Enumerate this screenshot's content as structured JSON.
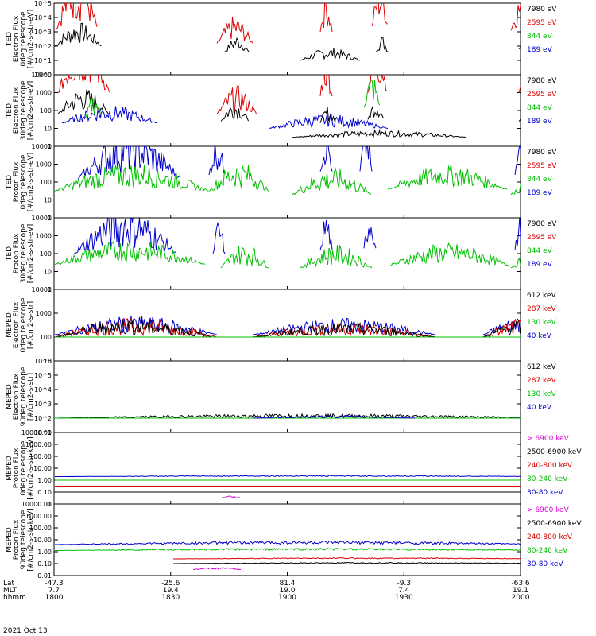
{
  "chart_data": {
    "type": "line",
    "date": "2021 Oct 13",
    "x_ticks": [
      "1800",
      "1830",
      "1900",
      "1930",
      "2000"
    ],
    "footer": {
      "row_labels": [
        "Lat",
        "MLT",
        "hhmm"
      ],
      "lat": [
        "-47.3",
        "-25.6",
        "81.4",
        "-9.3",
        "-63.6"
      ],
      "mlt": [
        "7.7",
        "19.4",
        "19.0",
        "7.4",
        "19.1"
      ],
      "hhmm": [
        "1800",
        "1830",
        "1900",
        "1930",
        "2000"
      ]
    },
    "panels": [
      {
        "ylabel": [
          "TED",
          "Electron Flux",
          "0deg telescope",
          "[#/cm2-s-str-eV]"
        ],
        "log_range": [
          0,
          5
        ],
        "tick_labels": [
          "10^0",
          "10^1",
          "10^2",
          "10^3",
          "10^4",
          "10^5"
        ],
        "legend": [
          "7980 eV",
          "2595 eV",
          "844 eV",
          "189 eV"
        ],
        "legend_colors": [
          "#000000",
          "#dd0000",
          "#00c000",
          "#0000cc"
        ],
        "series": [
          {
            "color": "#000000",
            "bursts": [
              [
                1,
                60,
                2.0,
                1.7
              ],
              [
                215,
                245,
                1.6,
                1.2
              ],
              [
                310,
                385,
                1.0,
                0.9
              ],
              [
                405,
                420,
                1.6,
                1.2
              ],
              [
                585,
                600,
                1.8,
                1.3
              ]
            ]
          },
          {
            "color": "#dd0000",
            "bursts": [
              [
                3,
                55,
                3.2,
                4.6
              ],
              [
                205,
                250,
                2.2,
                1.9
              ],
              [
                335,
                350,
                3.0,
                2.9
              ],
              [
                400,
                420,
                3.4,
                3.2
              ],
              [
                575,
                610,
                3.1,
                3.2
              ],
              [
                632,
                645,
                3.0,
                3.3
              ]
            ]
          },
          {
            "color": "#00c000",
            "bursts": [
              [
                630,
                645,
                1.5,
                1.4
              ]
            ]
          }
        ]
      },
      {
        "ylabel": [
          "TED",
          "Electron Flux",
          "30deg telescope",
          "[#/cm2-s-str-eV]"
        ],
        "log_range": [
          0,
          4
        ],
        "tick_labels": [
          "1",
          "10",
          "100",
          "1000",
          "10000"
        ],
        "legend": [
          "7980 eV",
          "2595 eV",
          "844 eV",
          "189 eV"
        ],
        "legend_colors": [
          "#000000",
          "#dd0000",
          "#00c000",
          "#0000cc"
        ],
        "series": [
          {
            "color": "#000000",
            "bursts": [
              [
                5,
                70,
                1.8,
                1.5
              ],
              [
                210,
                245,
                1.4,
                1.2
              ],
              [
                335,
                355,
                1.3,
                1.0
              ],
              [
                395,
                415,
                1.5,
                1.2
              ],
              [
                585,
                600,
                1.4,
                1.2
              ],
              [
                300,
                520,
                0.5,
                0.4
              ]
            ]
          },
          {
            "color": "#dd0000",
            "bursts": [
              [
                5,
                70,
                3.0,
                3.7
              ],
              [
                205,
                255,
                1.8,
                1.6
              ],
              [
                335,
                350,
                2.8,
                2.8
              ],
              [
                395,
                420,
                3.0,
                3.0
              ],
              [
                585,
                610,
                3.0,
                3.0
              ],
              [
                630,
                645,
                3.0,
                3.0
              ]
            ]
          },
          {
            "color": "#00c000",
            "bursts": [
              [
                40,
                60,
                1.6,
                1.4
              ],
              [
                390,
                410,
                2.2,
                2.0
              ],
              [
                630,
                645,
                2.2,
                2.0
              ]
            ]
          },
          {
            "color": "#0000cc",
            "bursts": [
              [
                10,
                130,
                1.3,
                1.0
              ],
              [
                270,
                420,
                1.0,
                0.8
              ]
            ]
          }
        ]
      },
      {
        "ylabel": [
          "TED",
          "Proton Flux",
          "0deg telescope",
          "[#/cm2-s-str-eV]"
        ],
        "log_range": [
          0,
          4
        ],
        "tick_labels": [
          "1",
          "10",
          "100",
          "1000",
          "10000"
        ],
        "legend": [
          "7980 eV",
          "2595 eV",
          "844 eV",
          "189 eV"
        ],
        "legend_colors": [
          "#000000",
          "#dd0000",
          "#00c000",
          "#0000cc"
        ],
        "series": [
          {
            "color": "#0000cc",
            "bursts": [
              [
                30,
                160,
                2.2,
                2.8
              ],
              [
                195,
                215,
                2.4,
                2.4
              ],
              [
                335,
                350,
                2.6,
                2.6
              ],
              [
                385,
                400,
                2.6,
                2.8
              ],
              [
                580,
                600,
                2.4,
                2.7
              ],
              [
                630,
                645,
                2.4,
                2.6
              ]
            ]
          },
          {
            "color": "#00c000",
            "bursts": [
              [
                1,
                195,
                1.5,
                1.6
              ],
              [
                195,
                270,
                1.5,
                1.7
              ],
              [
                300,
                400,
                1.3,
                1.5
              ],
              [
                420,
                570,
                1.6,
                1.4
              ],
              [
                575,
                645,
                1.3,
                1.3
              ]
            ]
          }
        ]
      },
      {
        "ylabel": [
          "TED",
          "Proton Flux",
          "30deg telescope",
          "[#/cm2-s-str-eV]"
        ],
        "log_range": [
          0,
          4
        ],
        "tick_labels": [
          "1",
          "10",
          "100",
          "1000",
          "10000"
        ],
        "legend": [
          "7980 eV",
          "2595 eV",
          "844 eV",
          "189 eV"
        ],
        "legend_colors": [
          "#000000",
          "#dd0000",
          "#00c000",
          "#0000cc"
        ],
        "series": [
          {
            "color": "#0000cc",
            "bursts": [
              [
                25,
                155,
                2.0,
                2.7
              ],
              [
                200,
                215,
                2.0,
                2.0
              ],
              [
                335,
                350,
                2.2,
                2.2
              ],
              [
                390,
                405,
                2.3,
                2.5
              ],
              [
                580,
                600,
                2.2,
                2.5
              ],
              [
                630,
                645,
                2.0,
                2.3
              ]
            ]
          },
          {
            "color": "#00c000",
            "bursts": [
              [
                1,
                190,
                1.4,
                1.4
              ],
              [
                210,
                270,
                1.2,
                1.4
              ],
              [
                310,
                400,
                1.2,
                1.3
              ],
              [
                420,
                575,
                1.3,
                1.3
              ],
              [
                575,
                645,
                1.2,
                1.2
              ]
            ]
          }
        ]
      },
      {
        "ylabel": [
          "MEPED",
          "Electron Flux",
          "0deg telescope",
          "[#/cm2-s-str]"
        ],
        "log_range": [
          1,
          4
        ],
        "tick_labels": [
          "10",
          "100",
          "1000",
          "10000"
        ],
        "legend": [
          "612 keV",
          "287 keV",
          "130 keV",
          "40 keV"
        ],
        "legend_colors": [
          "#000000",
          "#dd0000",
          "#00c000",
          "#0000cc"
        ],
        "series": [
          {
            "color": "#0000cc",
            "bursts": [
              [
                1,
                205,
                2.1,
                0.8
              ],
              [
                250,
                480,
                2.1,
                0.7
              ],
              [
                540,
                645,
                2.1,
                0.8
              ]
            ]
          },
          {
            "color": "#dd0000",
            "bursts": [
              [
                1,
                205,
                2.0,
                0.8
              ],
              [
                250,
                480,
                2.0,
                0.6
              ],
              [
                540,
                645,
                2.0,
                0.8
              ]
            ]
          },
          {
            "color": "#000000",
            "bursts": [
              [
                1,
                200,
                2.0,
                0.8
              ],
              [
                250,
                480,
                2.0,
                0.6
              ],
              [
                540,
                645,
                2.0,
                0.8
              ]
            ]
          },
          {
            "color": "#00c000",
            "bursts": [
              [
                1,
                645,
                2.0,
                0.0
              ]
            ]
          }
        ]
      },
      {
        "ylabel": [
          "MEPED",
          "Electron Flux",
          "90deg telescope",
          "[#/cm2-s-str]"
        ],
        "log_range": [
          1,
          6
        ],
        "tick_labels": [
          "10^1",
          "10^2",
          "10^3",
          "10^4",
          "10^5",
          "10^6"
        ],
        "legend": [
          "612 keV",
          "287 keV",
          "130 keV",
          "40 keV"
        ],
        "legend_colors": [
          "#000000",
          "#dd0000",
          "#00c000",
          "#0000cc"
        ],
        "series": [
          {
            "color": "#000000",
            "bursts": [
              [
                0,
                645,
                2.0,
                0.3
              ]
            ]
          },
          {
            "color": "#00c000",
            "bursts": [
              [
                0,
                645,
                2.0,
                0.0
              ]
            ]
          },
          {
            "color": "#0000cc",
            "bursts": [
              [
                250,
                455,
                2.0,
                0.2
              ]
            ]
          }
        ]
      },
      {
        "ylabel": [
          "MEPED",
          "Proton Flux",
          "0deg telescope",
          "[#/cm2-s-str-keV]"
        ],
        "log_range": [
          -2,
          4
        ],
        "tick_labels": [
          "0.01",
          "0.10",
          "1.00",
          "10.00",
          "100.00",
          "1000.00",
          "10000.00"
        ],
        "legend": [
          "> 6900 keV",
          "2500-6900 keV",
          "240-800 keV",
          "80-240 keV",
          "30-80 keV"
        ],
        "legend_colors": [
          "#dd00dd",
          "#000000",
          "#dd0000",
          "#00c000",
          "#0000cc"
        ],
        "series": [
          {
            "color": "#0000cc",
            "bursts": [
              [
                1,
                645,
                0.3,
                0.1
              ]
            ]
          },
          {
            "color": "#00c000",
            "bursts": [
              [
                1,
                645,
                0.0,
                0.0
              ]
            ]
          },
          {
            "color": "#dd0000",
            "bursts": [
              [
                1,
                645,
                -0.5,
                0.0
              ]
            ]
          },
          {
            "color": "#000000",
            "bursts": [
              [
                1,
                645,
                -1.0,
                0.0
              ]
            ]
          },
          {
            "color": "#dd00dd",
            "bursts": [
              [
                210,
                235,
                -1.5,
                0.2
              ]
            ]
          }
        ]
      },
      {
        "ylabel": [
          "MEPED",
          "Proton Flux",
          "90deg telescope",
          "[#/cm2-s-str-keV]"
        ],
        "log_range": [
          -2,
          4
        ],
        "tick_labels": [
          "0.01",
          "0.10",
          "1.00",
          "10.00",
          "100.00",
          "1000.00",
          "10000.00"
        ],
        "legend": [
          "> 6900 keV",
          "2500-6900 keV",
          "240-800 keV",
          "80-240 keV",
          "30-80 keV"
        ],
        "legend_colors": [
          "#dd00dd",
          "#000000",
          "#dd0000",
          "#00c000",
          "#0000cc"
        ],
        "series": [
          {
            "color": "#0000cc",
            "bursts": [
              [
                1,
                645,
                0.6,
                0.3
              ]
            ]
          },
          {
            "color": "#00c000",
            "bursts": [
              [
                1,
                645,
                0.1,
                0.2
              ]
            ]
          },
          {
            "color": "#dd0000",
            "bursts": [
              [
                150,
                645,
                -0.6,
                0.1
              ]
            ]
          },
          {
            "color": "#000000",
            "bursts": [
              [
                150,
                645,
                -1.0,
                0.1
              ]
            ]
          },
          {
            "color": "#dd00dd",
            "bursts": [
              [
                175,
                235,
                -1.5,
                0.2
              ]
            ]
          }
        ]
      }
    ]
  }
}
